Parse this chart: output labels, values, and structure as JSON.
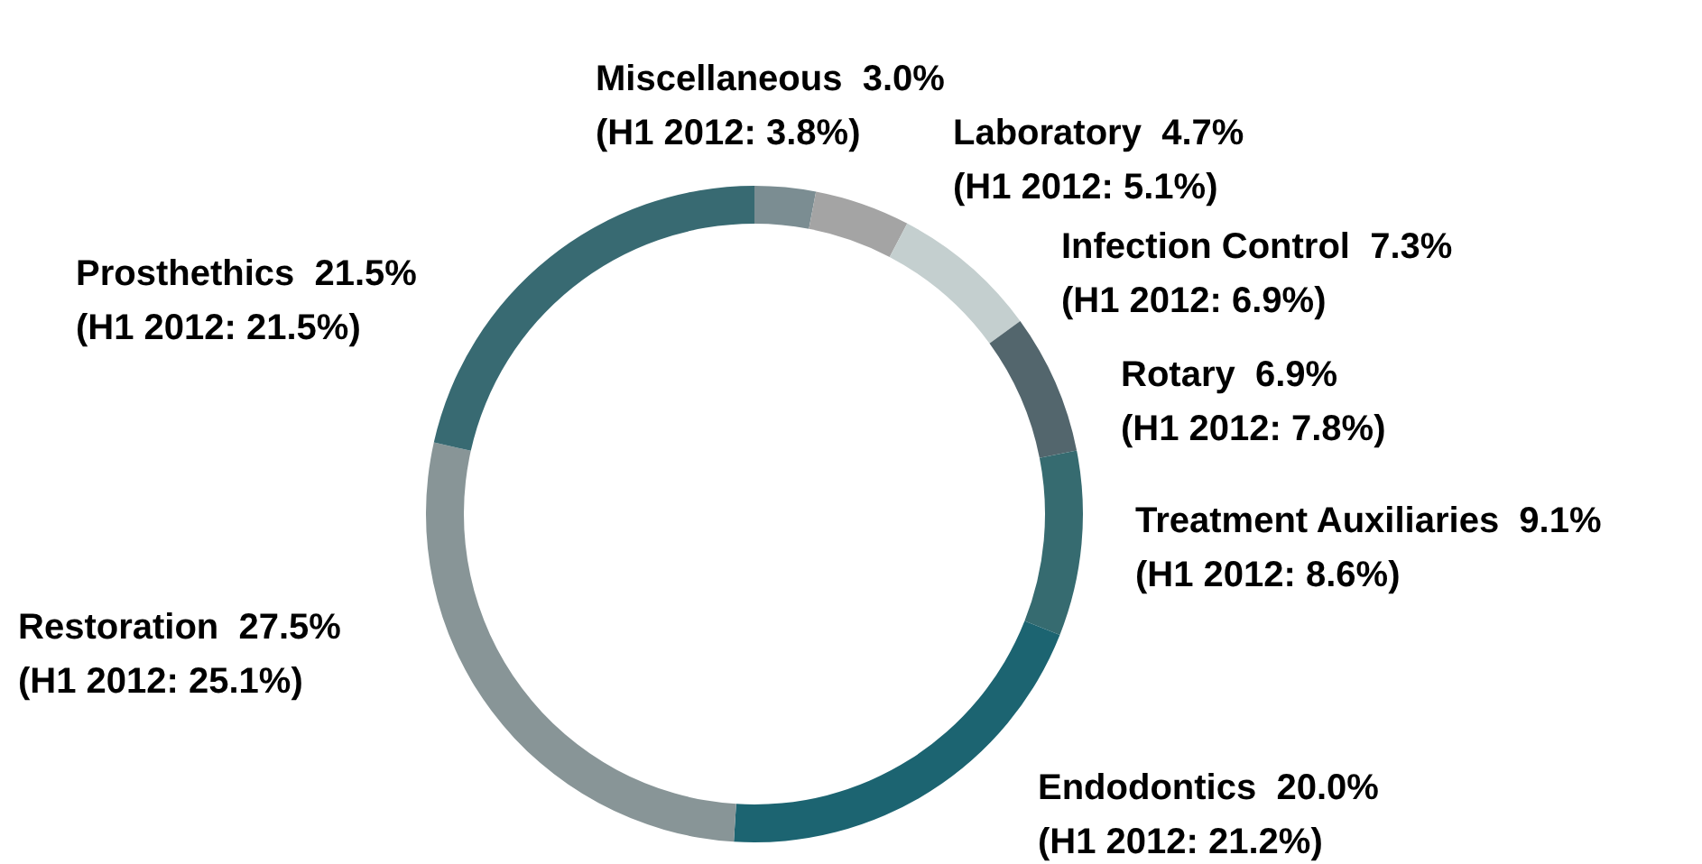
{
  "chart_data": {
    "type": "donut",
    "categories": [
      "Miscellaneous",
      "Laboratory",
      "Infection Control",
      "Rotary",
      "Treatment Auxiliaries",
      "Endodontics",
      "Restoration",
      "Prosthethics"
    ],
    "values": [
      3.0,
      4.7,
      7.3,
      6.9,
      9.1,
      20.0,
      27.5,
      21.5
    ],
    "value_labels": [
      "3.0%",
      "4.7%",
      "7.3%",
      "6.9%",
      "9.1%",
      "20.0%",
      "27.5%",
      "21.5%"
    ],
    "colors": [
      "#7b8d92",
      "#a4a4a4",
      "#c4cfcf",
      "#53666d",
      "#366b70",
      "#1c6471",
      "#889597",
      "#386a72"
    ],
    "annotations": [
      {
        "text": "(H1 2012: 3.8%)",
        "x": "Miscellaneous"
      },
      {
        "text": "(H1 2012: 5.1%)",
        "x": "Laboratory"
      },
      {
        "text": "(H1 2012: 6.9%)",
        "x": "Infection Control"
      },
      {
        "text": "(H1 2012: 7.8%)",
        "x": "Rotary"
      },
      {
        "text": "(H1 2012: 8.6%)",
        "x": "Treatment Auxiliaries"
      },
      {
        "text": "(H1 2012: 21.2%)",
        "x": "Endodontics"
      },
      {
        "text": "(H1 2012: 25.1%)",
        "x": "Restoration"
      },
      {
        "text": "(H1 2012: 21.5%)",
        "x": "Prosthethics"
      }
    ]
  }
}
